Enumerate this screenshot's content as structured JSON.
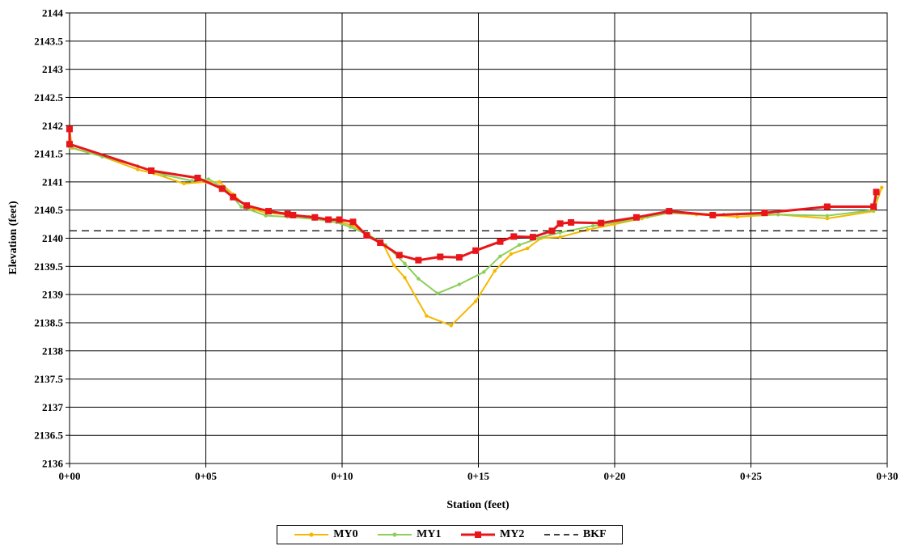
{
  "chart_data": {
    "type": "line",
    "title": "",
    "xlabel": "Station (feet)",
    "ylabel": "Elevation (feet)",
    "xlim": [
      0,
      30
    ],
    "ylim": [
      2136,
      2144
    ],
    "x_ticks": [
      0,
      5,
      10,
      15,
      20,
      25,
      30
    ],
    "x_tick_labels": [
      "0+00",
      "0+05",
      "0+10",
      "0+15",
      "0+20",
      "0+25",
      "0+30"
    ],
    "y_ticks": [
      2136,
      2136.5,
      2137,
      2137.5,
      2138,
      2138.5,
      2139,
      2139.5,
      2140,
      2140.5,
      2141,
      2141.5,
      2142,
      2142.5,
      2143,
      2143.5,
      2144
    ],
    "grid": "major",
    "legend_position": "bottom",
    "series": [
      {
        "name": "MY0",
        "color": "#f5b800",
        "marker": "dot",
        "points": [
          [
            0,
            2141.92
          ],
          [
            0.1,
            2141.6
          ],
          [
            1.2,
            2141.45
          ],
          [
            2.5,
            2141.22
          ],
          [
            3.1,
            2141.15
          ],
          [
            4.2,
            2140.97
          ],
          [
            5.0,
            2141.0
          ],
          [
            5.5,
            2141.0
          ],
          [
            6.0,
            2140.78
          ],
          [
            6.5,
            2140.55
          ],
          [
            7.2,
            2140.45
          ],
          [
            8.0,
            2140.42
          ],
          [
            8.8,
            2140.38
          ],
          [
            9.5,
            2140.33
          ],
          [
            10.0,
            2140.28
          ],
          [
            10.4,
            2140.22
          ],
          [
            11.0,
            2140.05
          ],
          [
            11.5,
            2139.9
          ],
          [
            11.9,
            2139.52
          ],
          [
            12.3,
            2139.3
          ],
          [
            13.1,
            2138.62
          ],
          [
            14.0,
            2138.45
          ],
          [
            14.9,
            2138.88
          ],
          [
            15.6,
            2139.42
          ],
          [
            16.2,
            2139.72
          ],
          [
            16.8,
            2139.82
          ],
          [
            17.3,
            2140.0
          ],
          [
            18.0,
            2140.02
          ],
          [
            19.0,
            2140.15
          ],
          [
            20.0,
            2140.25
          ],
          [
            21.0,
            2140.35
          ],
          [
            22.0,
            2140.45
          ],
          [
            23.0,
            2140.42
          ],
          [
            24.5,
            2140.38
          ],
          [
            26.0,
            2140.42
          ],
          [
            27.8,
            2140.35
          ],
          [
            29.5,
            2140.48
          ],
          [
            29.8,
            2140.9
          ]
        ]
      },
      {
        "name": "MY1",
        "color": "#8ccf5a",
        "marker": "dot",
        "points": [
          [
            0,
            2141.62
          ],
          [
            1.2,
            2141.45
          ],
          [
            2.5,
            2141.28
          ],
          [
            3.5,
            2141.12
          ],
          [
            4.5,
            2141.02
          ],
          [
            5.1,
            2141.05
          ],
          [
            5.7,
            2140.88
          ],
          [
            6.3,
            2140.56
          ],
          [
            7.2,
            2140.4
          ],
          [
            8.0,
            2140.38
          ],
          [
            9.0,
            2140.34
          ],
          [
            9.8,
            2140.28
          ],
          [
            10.3,
            2140.2
          ],
          [
            11.0,
            2140.05
          ],
          [
            11.6,
            2139.88
          ],
          [
            12.3,
            2139.55
          ],
          [
            12.8,
            2139.28
          ],
          [
            13.5,
            2139.02
          ],
          [
            14.3,
            2139.18
          ],
          [
            15.2,
            2139.4
          ],
          [
            15.8,
            2139.68
          ],
          [
            16.5,
            2139.88
          ],
          [
            17.2,
            2140.0
          ],
          [
            18.0,
            2140.1
          ],
          [
            19.2,
            2140.22
          ],
          [
            20.3,
            2140.3
          ],
          [
            21.2,
            2140.38
          ],
          [
            22.0,
            2140.45
          ],
          [
            24.0,
            2140.42
          ],
          [
            26.0,
            2140.42
          ],
          [
            27.8,
            2140.4
          ],
          [
            29.5,
            2140.5
          ],
          [
            29.6,
            2140.72
          ]
        ]
      },
      {
        "name": "MY2",
        "color": "#e8161a",
        "marker": "square",
        "points": [
          [
            0,
            2141.94
          ],
          [
            0,
            2141.67
          ],
          [
            3.0,
            2141.2
          ],
          [
            4.7,
            2141.07
          ],
          [
            5.6,
            2140.88
          ],
          [
            6.0,
            2140.73
          ],
          [
            6.5,
            2140.58
          ],
          [
            7.3,
            2140.48
          ],
          [
            8.0,
            2140.43
          ],
          [
            8.2,
            2140.41
          ],
          [
            9.0,
            2140.37
          ],
          [
            9.5,
            2140.33
          ],
          [
            9.9,
            2140.33
          ],
          [
            10.4,
            2140.29
          ],
          [
            10.9,
            2140.05
          ],
          [
            11.4,
            2139.92
          ],
          [
            12.1,
            2139.7
          ],
          [
            12.8,
            2139.61
          ],
          [
            13.6,
            2139.67
          ],
          [
            14.3,
            2139.66
          ],
          [
            14.9,
            2139.78
          ],
          [
            15.8,
            2139.94
          ],
          [
            16.3,
            2140.03
          ],
          [
            17.0,
            2140.02
          ],
          [
            17.7,
            2140.13
          ],
          [
            18.0,
            2140.26
          ],
          [
            18.4,
            2140.28
          ],
          [
            19.5,
            2140.27
          ],
          [
            20.8,
            2140.37
          ],
          [
            22.0,
            2140.48
          ],
          [
            23.6,
            2140.41
          ],
          [
            25.5,
            2140.45
          ],
          [
            27.8,
            2140.56
          ],
          [
            29.5,
            2140.56
          ],
          [
            29.6,
            2140.82
          ]
        ]
      },
      {
        "name": "BKF",
        "color": "#000000",
        "dashed": true,
        "points": [
          [
            0,
            2140.13
          ],
          [
            30,
            2140.13
          ]
        ]
      }
    ]
  }
}
